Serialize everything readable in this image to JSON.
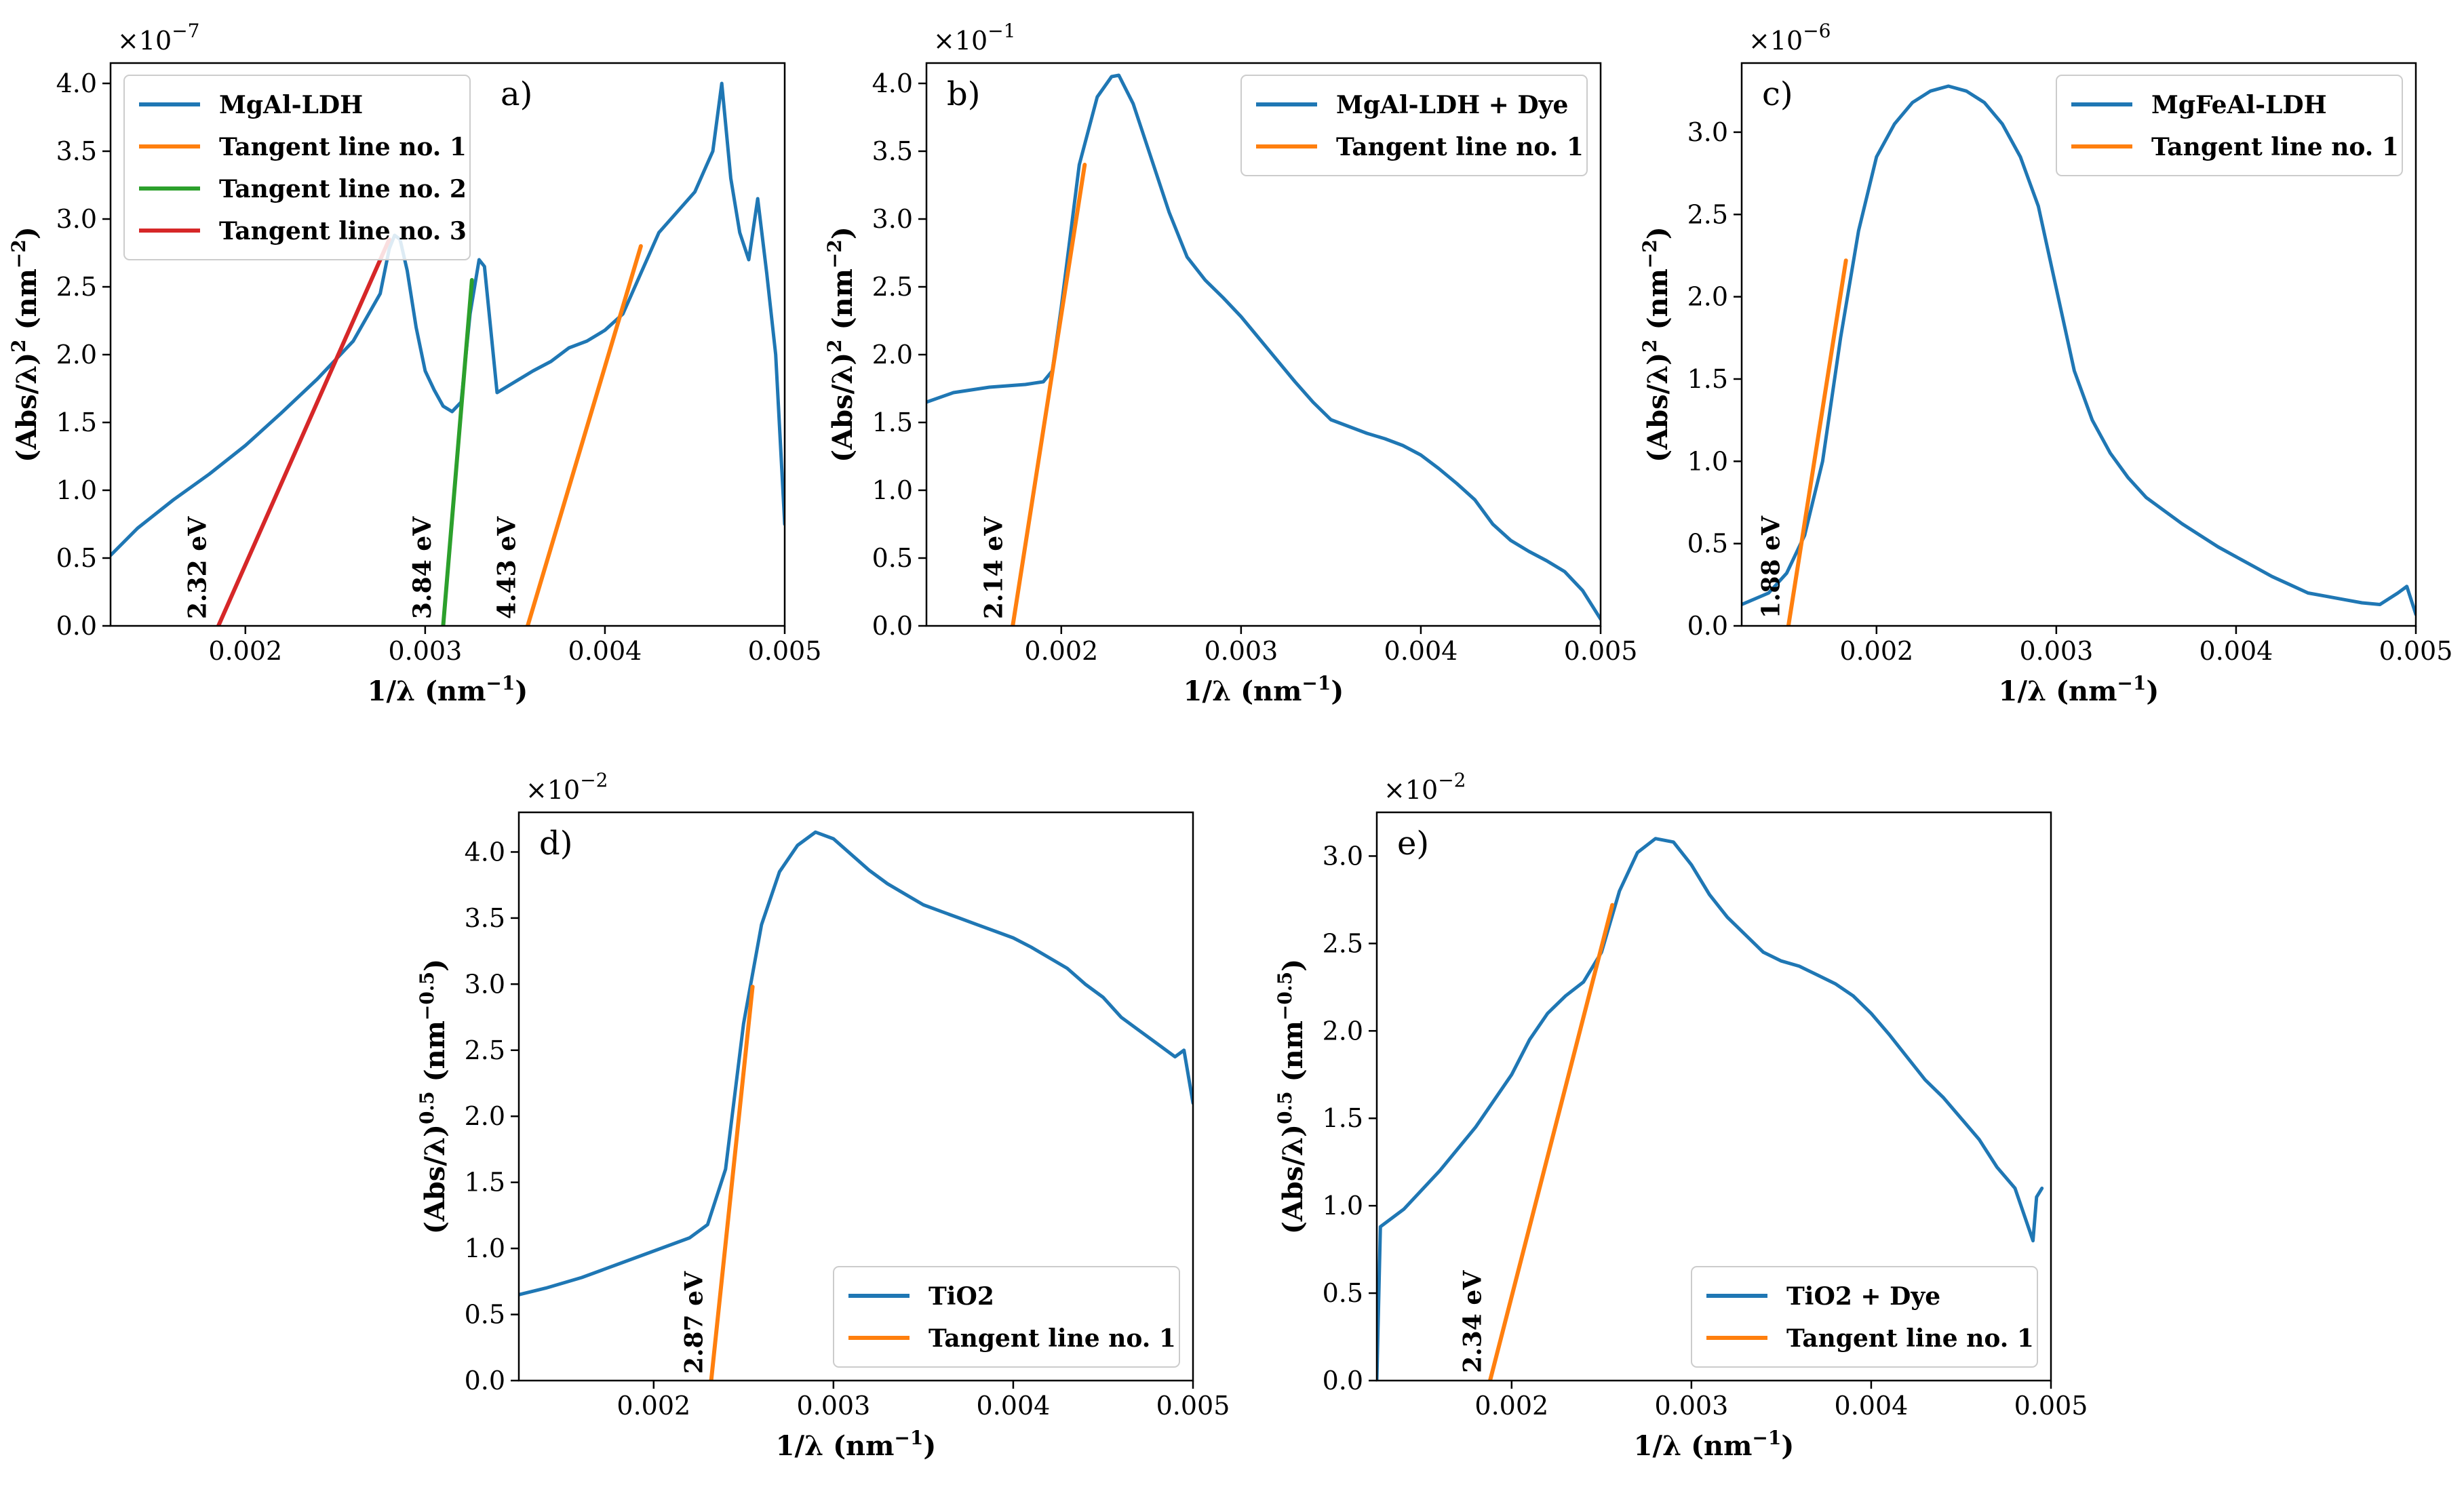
{
  "figure": {
    "background": "#ffffff"
  },
  "colors": {
    "c0": "#1f77b4",
    "c1": "#ff7f0e",
    "c2": "#2ca02c",
    "c3": "#d62728"
  },
  "chart_data": [
    {
      "type": "line",
      "panel_label": "a)",
      "exponent_base": "×10",
      "exponent_power": "−7",
      "xlabel_main": "1/λ (nm",
      "xlabel_sup": "−1",
      "xlabel_end": ")",
      "ylabel_main": "(Abs/λ)",
      "ylabel_sup1": "2",
      "ylabel_mid": " (nm",
      "ylabel_sup2": "−2",
      "ylabel_end": ")",
      "xlim": [
        0.00125,
        0.005
      ],
      "ylim": [
        0,
        4.15
      ],
      "xticks": [
        0.002,
        0.003,
        0.004,
        0.005
      ],
      "xtick_labels": [
        "0.002",
        "0.003",
        "0.004",
        "0.005"
      ],
      "yticks": [
        0,
        0.5,
        1,
        1.5,
        2,
        2.5,
        3,
        3.5,
        4
      ],
      "ytick_labels": [
        "0.0",
        "0.5",
        "1.0",
        "1.5",
        "2.0",
        "2.5",
        "3.0",
        "3.5",
        "4.0"
      ],
      "legend_position": "upper-left",
      "series": [
        {
          "name": "MgAl-LDH",
          "color": "#1f77b4",
          "style": "data",
          "width": 5,
          "x": [
            0.00125,
            0.0014,
            0.0016,
            0.0018,
            0.002,
            0.0022,
            0.0024,
            0.0026,
            0.00275,
            0.0028,
            0.00283,
            0.00286,
            0.0029,
            0.00295,
            0.003,
            0.00305,
            0.0031,
            0.00315,
            0.0032,
            0.00325,
            0.0033,
            0.00333,
            0.00336,
            0.0034,
            0.0035,
            0.0036,
            0.0037,
            0.0038,
            0.0039,
            0.004,
            0.0041,
            0.0042,
            0.0043,
            0.0044,
            0.0045,
            0.00455,
            0.0046,
            0.00465,
            0.0047,
            0.00475,
            0.0048,
            0.00485,
            0.0049,
            0.00495,
            0.005
          ],
          "y": [
            0.52,
            0.72,
            0.93,
            1.12,
            1.33,
            1.57,
            1.82,
            2.1,
            2.45,
            2.78,
            2.88,
            2.85,
            2.62,
            2.2,
            1.88,
            1.74,
            1.62,
            1.58,
            1.65,
            2.3,
            2.7,
            2.65,
            2.25,
            1.72,
            1.8,
            1.88,
            1.95,
            2.05,
            2.1,
            2.18,
            2.3,
            2.6,
            2.9,
            3.05,
            3.2,
            3.35,
            3.5,
            4.0,
            3.3,
            2.9,
            2.7,
            3.15,
            2.6,
            2.0,
            0.75
          ]
        },
        {
          "name": "Tangent line no. 1",
          "color": "#ff7f0e",
          "style": "tangent",
          "width": 6,
          "x": [
            0.00357,
            0.0042
          ],
          "y": [
            0,
            2.8
          ]
        },
        {
          "name": "Tangent line no. 2",
          "color": "#2ca02c",
          "style": "tangent",
          "width": 6,
          "x": [
            0.0031,
            0.00326
          ],
          "y": [
            0,
            2.55
          ]
        },
        {
          "name": "Tangent line no. 3",
          "color": "#d62728",
          "style": "tangent",
          "width": 6,
          "x": [
            0.00185,
            0.0028
          ],
          "y": [
            0,
            2.85
          ]
        }
      ],
      "annotations": [
        {
          "text": "2.32 eV",
          "x": 0.00178,
          "y": 0.02
        },
        {
          "text": "3.84 eV",
          "x": 0.00303,
          "y": 0.02
        },
        {
          "text": "4.43 eV",
          "x": 0.0035,
          "y": 0.02
        }
      ]
    },
    {
      "type": "line",
      "panel_label": "b)",
      "exponent_base": "×10",
      "exponent_power": "−1",
      "xlabel_main": "1/λ (nm",
      "xlabel_sup": "−1",
      "xlabel_end": ")",
      "ylabel_main": "(Abs/λ)",
      "ylabel_sup1": "2",
      "ylabel_mid": " (nm",
      "ylabel_sup2": "−2",
      "ylabel_end": ")",
      "xlim": [
        0.00125,
        0.005
      ],
      "ylim": [
        0,
        4.15
      ],
      "xticks": [
        0.002,
        0.003,
        0.004,
        0.005
      ],
      "xtick_labels": [
        "0.002",
        "0.003",
        "0.004",
        "0.005"
      ],
      "yticks": [
        0,
        0.5,
        1,
        1.5,
        2,
        2.5,
        3,
        3.5,
        4
      ],
      "ytick_labels": [
        "0.0",
        "0.5",
        "1.0",
        "1.5",
        "2.0",
        "2.5",
        "3.0",
        "3.5",
        "4.0"
      ],
      "legend_position": "upper-right",
      "series": [
        {
          "name": "MgAl-LDH + Dye",
          "color": "#1f77b4",
          "style": "data",
          "width": 5,
          "x": [
            0.00125,
            0.0014,
            0.0016,
            0.0018,
            0.0019,
            0.00195,
            0.002,
            0.0021,
            0.0022,
            0.00228,
            0.00232,
            0.0024,
            0.0025,
            0.0026,
            0.0027,
            0.0028,
            0.0029,
            0.003,
            0.0031,
            0.0032,
            0.0033,
            0.0034,
            0.0035,
            0.0036,
            0.0037,
            0.0038,
            0.0039,
            0.004,
            0.0041,
            0.0042,
            0.0043,
            0.0044,
            0.0045,
            0.0046,
            0.0047,
            0.0048,
            0.0049,
            0.005
          ],
          "y": [
            1.65,
            1.72,
            1.76,
            1.78,
            1.8,
            1.88,
            2.35,
            3.4,
            3.9,
            4.05,
            4.06,
            3.85,
            3.45,
            3.05,
            2.72,
            2.55,
            2.42,
            2.28,
            2.12,
            1.96,
            1.8,
            1.65,
            1.52,
            1.47,
            1.42,
            1.38,
            1.33,
            1.26,
            1.16,
            1.05,
            0.93,
            0.75,
            0.63,
            0.55,
            0.48,
            0.4,
            0.26,
            0.05
          ]
        },
        {
          "name": "Tangent line no. 1",
          "color": "#ff7f0e",
          "style": "tangent",
          "width": 6,
          "x": [
            0.00173,
            0.00213
          ],
          "y": [
            0,
            3.4
          ]
        }
      ],
      "annotations": [
        {
          "text": "2.14 eV",
          "x": 0.00167,
          "y": 0.02
        }
      ]
    },
    {
      "type": "line",
      "panel_label": "c)",
      "exponent_base": "×10",
      "exponent_power": "−6",
      "xlabel_main": "1/λ (nm",
      "xlabel_sup": "−1",
      "xlabel_end": ")",
      "ylabel_main": "(Abs/λ)",
      "ylabel_sup1": "2",
      "ylabel_mid": " (nm",
      "ylabel_sup2": "−2",
      "ylabel_end": ")",
      "xlim": [
        0.00125,
        0.005
      ],
      "ylim": [
        0,
        3.42
      ],
      "xticks": [
        0.002,
        0.003,
        0.004,
        0.005
      ],
      "xtick_labels": [
        "0.002",
        "0.003",
        "0.004",
        "0.005"
      ],
      "yticks": [
        0,
        0.5,
        1,
        1.5,
        2,
        2.5,
        3
      ],
      "ytick_labels": [
        "0.0",
        "0.5",
        "1.0",
        "1.5",
        "2.0",
        "2.5",
        "3.0"
      ],
      "legend_position": "upper-right",
      "series": [
        {
          "name": "MgFeAl-LDH",
          "color": "#1f77b4",
          "style": "data",
          "width": 5,
          "x": [
            0.00125,
            0.0014,
            0.0015,
            0.0016,
            0.0017,
            0.0018,
            0.0019,
            0.002,
            0.0021,
            0.0022,
            0.0023,
            0.0024,
            0.0025,
            0.0026,
            0.0027,
            0.0028,
            0.00285,
            0.0029,
            0.003,
            0.0031,
            0.0032,
            0.0033,
            0.0034,
            0.0035,
            0.0036,
            0.0037,
            0.0038,
            0.0039,
            0.004,
            0.0041,
            0.0042,
            0.0043,
            0.0044,
            0.0045,
            0.0046,
            0.0047,
            0.0048,
            0.0049,
            0.00495,
            0.005
          ],
          "y": [
            0.13,
            0.2,
            0.32,
            0.55,
            1.0,
            1.75,
            2.4,
            2.85,
            3.05,
            3.18,
            3.25,
            3.28,
            3.25,
            3.18,
            3.05,
            2.85,
            2.7,
            2.55,
            2.05,
            1.55,
            1.25,
            1.05,
            0.9,
            0.78,
            0.7,
            0.62,
            0.55,
            0.48,
            0.42,
            0.36,
            0.3,
            0.25,
            0.2,
            0.18,
            0.16,
            0.14,
            0.13,
            0.2,
            0.24,
            0.07
          ]
        },
        {
          "name": "Tangent line no. 1",
          "color": "#ff7f0e",
          "style": "tangent",
          "width": 6,
          "x": [
            0.00151,
            0.00183
          ],
          "y": [
            0,
            2.22
          ]
        }
      ],
      "annotations": [
        {
          "text": "1.88 eV",
          "x": 0.00146,
          "y": 0.02
        }
      ]
    },
    {
      "type": "line",
      "panel_label": "d)",
      "exponent_base": "×10",
      "exponent_power": "−2",
      "xlabel_main": "1/λ (nm",
      "xlabel_sup": "−1",
      "xlabel_end": ")",
      "ylabel_main": "(Abs/λ)",
      "ylabel_sup1": "0.5",
      "ylabel_mid": " (nm",
      "ylabel_sup2": "−0.5",
      "ylabel_end": ")",
      "xlim": [
        0.00125,
        0.005
      ],
      "ylim": [
        0,
        4.3
      ],
      "xticks": [
        0.002,
        0.003,
        0.004,
        0.005
      ],
      "xtick_labels": [
        "0.002",
        "0.003",
        "0.004",
        "0.005"
      ],
      "yticks": [
        0,
        0.5,
        1,
        1.5,
        2,
        2.5,
        3,
        3.5,
        4
      ],
      "ytick_labels": [
        "0.0",
        "0.5",
        "1.0",
        "1.5",
        "2.0",
        "2.5",
        "3.0",
        "3.5",
        "4.0"
      ],
      "legend_position": "lower-right",
      "series": [
        {
          "name": "TiO2",
          "color": "#1f77b4",
          "style": "data",
          "width": 5,
          "x": [
            0.00125,
            0.0014,
            0.0016,
            0.0018,
            0.002,
            0.0022,
            0.0023,
            0.0024,
            0.0025,
            0.0026,
            0.0027,
            0.0028,
            0.0029,
            0.003,
            0.0031,
            0.0032,
            0.0033,
            0.0034,
            0.0035,
            0.0036,
            0.0037,
            0.0038,
            0.0039,
            0.004,
            0.0041,
            0.0042,
            0.0043,
            0.0044,
            0.0045,
            0.0046,
            0.0047,
            0.0048,
            0.0049,
            0.00495,
            0.005
          ],
          "y": [
            0.65,
            0.7,
            0.78,
            0.88,
            0.98,
            1.08,
            1.18,
            1.6,
            2.7,
            3.45,
            3.85,
            4.05,
            4.15,
            4.1,
            3.98,
            3.86,
            3.76,
            3.68,
            3.6,
            3.55,
            3.5,
            3.45,
            3.4,
            3.35,
            3.28,
            3.2,
            3.12,
            3.0,
            2.9,
            2.75,
            2.65,
            2.55,
            2.45,
            2.5,
            2.1
          ]
        },
        {
          "name": "Tangent line no. 1",
          "color": "#ff7f0e",
          "style": "tangent",
          "width": 6,
          "x": [
            0.00232,
            0.00255
          ],
          "y": [
            0,
            2.98
          ]
        }
      ],
      "annotations": [
        {
          "text": "2.87 eV",
          "x": 0.00227,
          "y": 0.02
        }
      ]
    },
    {
      "type": "line",
      "panel_label": "e)",
      "exponent_base": "×10",
      "exponent_power": "−2",
      "xlabel_main": "1/λ (nm",
      "xlabel_sup": "−1",
      "xlabel_end": ")",
      "ylabel_main": "(Abs/λ)",
      "ylabel_sup1": "0.5",
      "ylabel_mid": " (nm",
      "ylabel_sup2": "−0.5",
      "ylabel_end": ")",
      "xlim": [
        0.00125,
        0.005
      ],
      "ylim": [
        0,
        3.25
      ],
      "xticks": [
        0.002,
        0.003,
        0.004,
        0.005
      ],
      "xtick_labels": [
        "0.002",
        "0.003",
        "0.004",
        "0.005"
      ],
      "yticks": [
        0,
        0.5,
        1,
        1.5,
        2,
        2.5,
        3
      ],
      "ytick_labels": [
        "0.0",
        "0.5",
        "1.0",
        "1.5",
        "2.0",
        "2.5",
        "3.0"
      ],
      "legend_position": "lower-right",
      "series": [
        {
          "name": "TiO2 + Dye",
          "color": "#1f77b4",
          "style": "data",
          "width": 5,
          "x": [
            0.00125,
            0.00127,
            0.0014,
            0.0016,
            0.0018,
            0.002,
            0.0021,
            0.0022,
            0.0023,
            0.0024,
            0.0025,
            0.0026,
            0.0027,
            0.0028,
            0.0029,
            0.003,
            0.0031,
            0.0032,
            0.0033,
            0.0034,
            0.0035,
            0.0036,
            0.0037,
            0.0038,
            0.0039,
            0.004,
            0.0041,
            0.0042,
            0.0043,
            0.0044,
            0.0045,
            0.0046,
            0.0047,
            0.0048,
            0.0049,
            0.00492,
            0.00495
          ],
          "y": [
            0.0,
            0.88,
            0.98,
            1.2,
            1.45,
            1.75,
            1.95,
            2.1,
            2.2,
            2.28,
            2.45,
            2.8,
            3.02,
            3.1,
            3.08,
            2.95,
            2.78,
            2.65,
            2.55,
            2.45,
            2.4,
            2.37,
            2.32,
            2.27,
            2.2,
            2.1,
            1.98,
            1.85,
            1.72,
            1.62,
            1.5,
            1.38,
            1.22,
            1.1,
            0.8,
            1.05,
            1.1
          ]
        },
        {
          "name": "Tangent line no. 1",
          "color": "#ff7f0e",
          "style": "tangent",
          "width": 6,
          "x": [
            0.00188,
            0.00256
          ],
          "y": [
            0,
            2.72
          ]
        }
      ],
      "annotations": [
        {
          "text": "2.34 eV",
          "x": 0.00183,
          "y": 0.02
        }
      ]
    }
  ]
}
